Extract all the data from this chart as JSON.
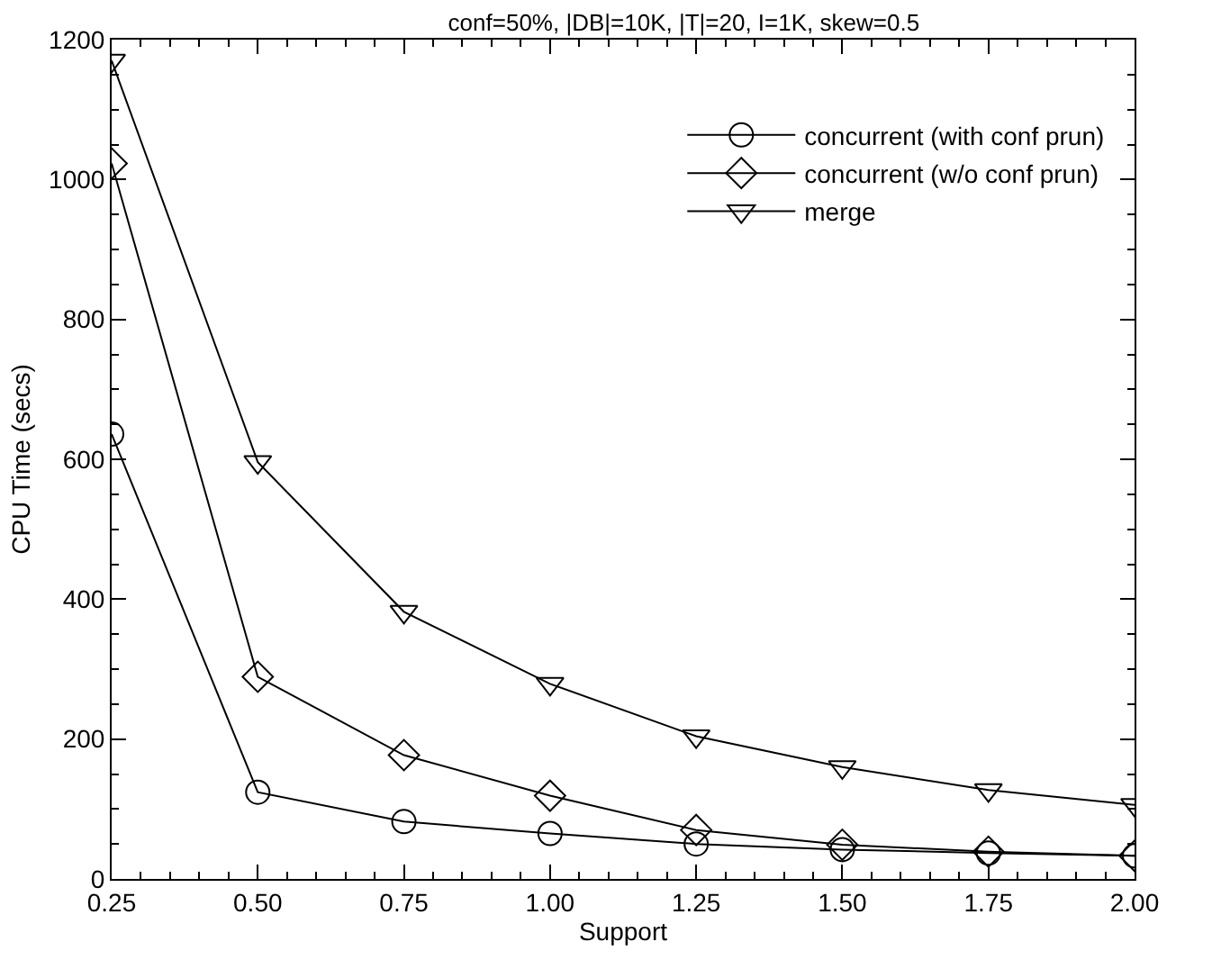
{
  "chart_data": {
    "type": "line",
    "title": "conf=50%, |DB|=10K, |T|=20, I=1K, skew=0.5",
    "xlabel": "Support",
    "ylabel": "CPU Time (secs)",
    "x": [
      0.25,
      0.5,
      0.75,
      1.0,
      1.25,
      1.5,
      1.75,
      2.0
    ],
    "series": [
      {
        "name": "concurrent (with conf prun)",
        "color": "#000000",
        "marker": "circle",
        "values": [
          636,
          124,
          82,
          65,
          50,
          42,
          37,
          33
        ]
      },
      {
        "name": "concurrent (w/o conf prun)",
        "color": "#000000",
        "marker": "diamond",
        "values": [
          1023,
          289,
          177,
          119,
          70,
          49,
          39,
          33
        ]
      },
      {
        "name": "merge",
        "color": "#000000",
        "marker": "triangle",
        "values": [
          1170,
          596,
          382,
          279,
          204,
          160,
          127,
          106
        ]
      }
    ],
    "xlim": [
      0.25,
      2.0
    ],
    "xticks": [
      {
        "value": 0.25,
        "label": "0.25"
      },
      {
        "value": 0.5,
        "label": "0.50"
      },
      {
        "value": 0.75,
        "label": "0.75"
      },
      {
        "value": 1.0,
        "label": "1.00"
      },
      {
        "value": 1.25,
        "label": "1.25"
      },
      {
        "value": 1.5,
        "label": "1.50"
      },
      {
        "value": 1.75,
        "label": "1.75"
      },
      {
        "value": 2.0,
        "label": "2.00"
      }
    ],
    "ylim": [
      0,
      1200
    ],
    "yticks": [
      0,
      200,
      400,
      600,
      800,
      1000,
      1200
    ],
    "grid": false,
    "legend": "top right",
    "line_style": "solid"
  }
}
